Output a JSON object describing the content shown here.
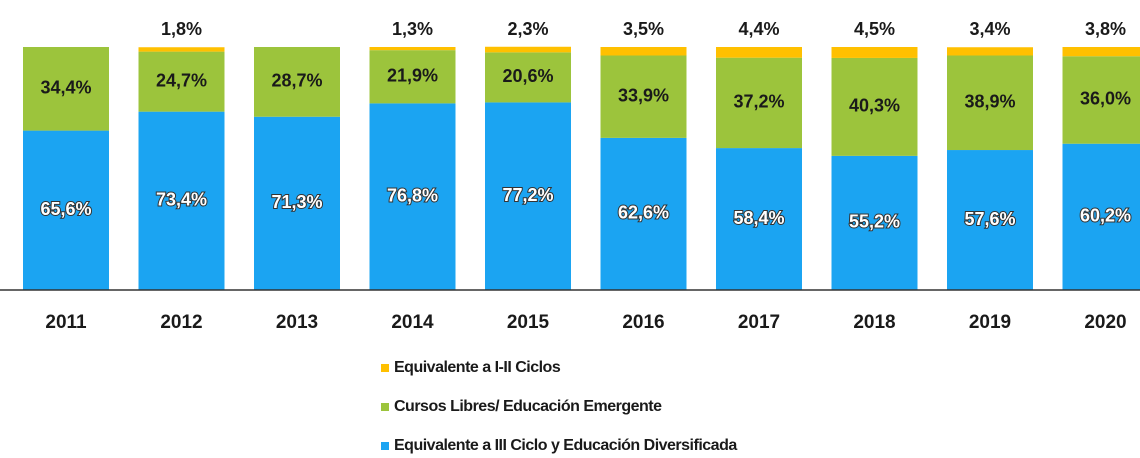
{
  "chart_data": {
    "type": "stacked_bar",
    "categories": [
      "2011",
      "2012",
      "2013",
      "2014",
      "2015",
      "2016",
      "2017",
      "2018",
      "2019",
      "2020"
    ],
    "ylim": [
      0,
      100
    ],
    "series": [
      {
        "name": "Equivalente a III Ciclo y Educación Diversificada",
        "color": "#1ba4f2",
        "values": [
          65.6,
          73.4,
          71.3,
          76.8,
          77.2,
          62.6,
          58.4,
          55.2,
          57.6,
          60.2
        ],
        "value_labels": [
          "65,6%",
          "73,4%",
          "71,3%",
          "76,8%",
          "77,2%",
          "62,6%",
          "58,4%",
          "55,2%",
          "57,6%",
          "60,2%"
        ]
      },
      {
        "name": "Cursos Libres/ Educación Emergente",
        "color": "#9cc43c",
        "values": [
          34.4,
          24.7,
          28.7,
          21.9,
          20.6,
          33.9,
          37.2,
          40.3,
          38.9,
          36.0
        ],
        "value_labels": [
          "34,4%",
          "24,7%",
          "28,7%",
          "21,9%",
          "20,6%",
          "33,9%",
          "37,2%",
          "40,3%",
          "38,9%",
          "36,0%"
        ]
      },
      {
        "name": "Equivalente a I-II Ciclos",
        "color": "#ffc000",
        "values": [
          null,
          1.8,
          null,
          1.3,
          2.3,
          3.5,
          4.4,
          4.5,
          3.4,
          3.8
        ],
        "value_labels": [
          null,
          "1,8%",
          null,
          "1,3%",
          "2,3%",
          "3,5%",
          "4,4%",
          "4,5%",
          "3,4%",
          "3,8%"
        ]
      }
    ]
  }
}
